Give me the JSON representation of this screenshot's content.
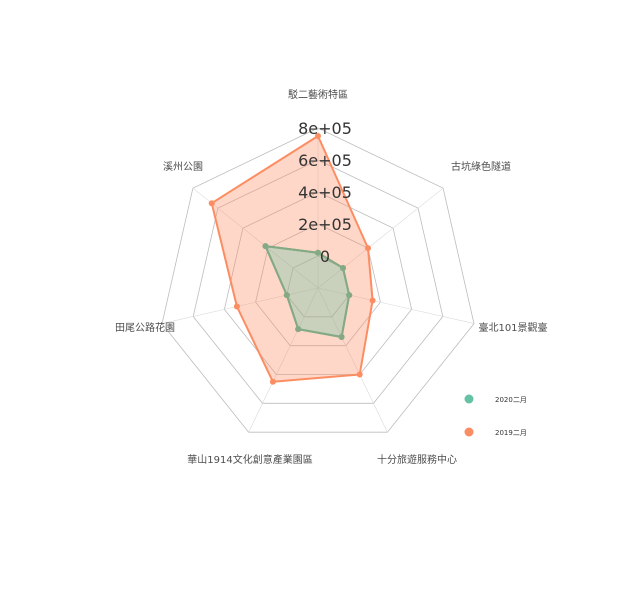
{
  "chart_data": {
    "type": "radar",
    "title": "",
    "axes": [
      "駁二藝術特區",
      "古坑綠色隧道",
      "臺北101景觀臺",
      "十分旅遊服務中心",
      "華山1914文化創意產業園區",
      "田尾公路花園",
      "溪州公園"
    ],
    "radial_ticks": [
      "0",
      "2e+05",
      "4e+05",
      "6e+05",
      "8e+05"
    ],
    "tick_values": [
      0,
      200000,
      400000,
      600000,
      800000
    ],
    "rlim": [
      -200000,
      800000
    ],
    "grid": true,
    "legend_position": "right",
    "series": [
      {
        "name": "2019二月",
        "color": "#fc8d62",
        "values": [
          750000,
          200000,
          150000,
          400000,
          450000,
          320000,
          650000
        ]
      },
      {
        "name": "2020二月",
        "color": "#66c2a5",
        "values": [
          20000,
          0,
          0,
          140000,
          85000,
          0,
          220000
        ]
      }
    ],
    "legend_order": [
      "2020二月",
      "2019二月"
    ]
  }
}
